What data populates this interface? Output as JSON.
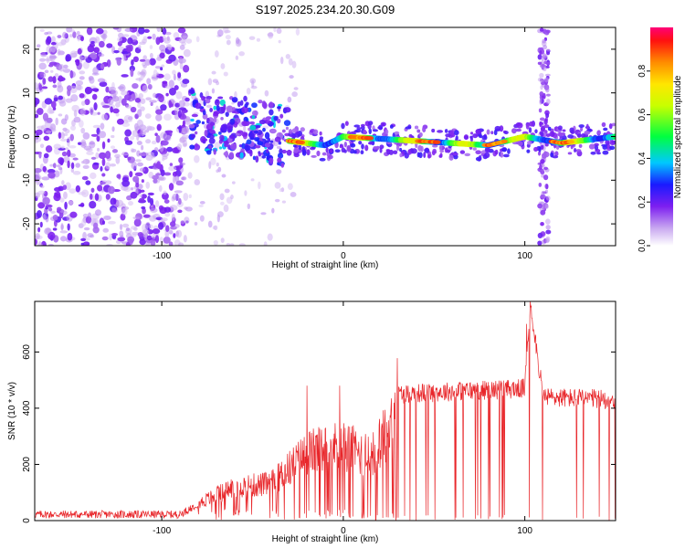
{
  "figure_title": "S197.2025.234.20.30.G09",
  "chart_data": [
    {
      "id": "spectrogram",
      "type": "heatmap",
      "title": "S197.2025.234.20.30.G09",
      "xlabel": "Height of straight line (km)",
      "ylabel": "Frequency (Hz)",
      "xlim": [
        -170,
        150
      ],
      "ylim": [
        -25,
        25
      ],
      "x_ticks": [
        -100,
        0,
        100
      ],
      "y_ticks": [
        -20,
        -10,
        0,
        10,
        20
      ],
      "colorbar": {
        "label": "Normalized spectral amplitude",
        "range": [
          0,
          1
        ],
        "ticks": [
          0.0,
          0.2,
          0.4,
          0.6,
          0.8
        ]
      },
      "features": [
        {
          "name": "broadband noise",
          "x_range": [
            -170,
            -85
          ],
          "freq_range": [
            -25,
            25
          ],
          "amplitude": "low"
        },
        {
          "name": "scattered signal",
          "x_range": [
            -85,
            -30
          ],
          "freq_range": [
            -8,
            12
          ],
          "amplitude": "medium"
        },
        {
          "name": "narrowband carrier",
          "x_range": [
            -30,
            150
          ],
          "center_freq_hz": [
            {
              "x": -30,
              "f": -1
            },
            {
              "x": -10,
              "f": -2
            },
            {
              "x": 0,
              "f": 0
            },
            {
              "x": 20,
              "f": -0.5
            },
            {
              "x": 40,
              "f": -1
            },
            {
              "x": 60,
              "f": -1.5
            },
            {
              "x": 80,
              "f": -2
            },
            {
              "x": 100,
              "f": 0
            },
            {
              "x": 120,
              "f": -1.5
            },
            {
              "x": 140,
              "f": -0.5
            },
            {
              "x": 150,
              "f": 0
            }
          ],
          "amplitude": "high"
        },
        {
          "name": "vertical stripe",
          "x_range": [
            108,
            113
          ],
          "freq_range": [
            -25,
            25
          ],
          "amplitude": "low"
        }
      ]
    },
    {
      "id": "snr",
      "type": "line",
      "xlabel": "Height of straight line (km)",
      "ylabel": "SNR (10 * v/v)",
      "xlim": [
        -170,
        150
      ],
      "ylim": [
        0,
        780
      ],
      "x_ticks": [
        -100,
        0,
        100
      ],
      "y_ticks": [
        0,
        200,
        400,
        600
      ],
      "series": [
        {
          "name": "SNR",
          "color": "#e8262a",
          "trend": [
            {
              "x": -170,
              "y": 22
            },
            {
              "x": -90,
              "y": 22
            },
            {
              "x": -80,
              "y": 60
            },
            {
              "x": -60,
              "y": 120
            },
            {
              "x": -40,
              "y": 130
            },
            {
              "x": -20,
              "y": 240
            },
            {
              "x": 0,
              "y": 270
            },
            {
              "x": 15,
              "y": 220
            },
            {
              "x": 25,
              "y": 330
            },
            {
              "x": 30,
              "y": 450
            },
            {
              "x": 60,
              "y": 460
            },
            {
              "x": 100,
              "y": 470
            },
            {
              "x": 103,
              "y": 780
            },
            {
              "x": 110,
              "y": 440
            },
            {
              "x": 150,
              "y": 430
            }
          ],
          "spikes": [
            {
              "x": -20,
              "y": 480
            },
            {
              "x": -2,
              "y": 480
            },
            {
              "x": 103,
              "y": 780
            },
            {
              "x": 101,
              "y": 700
            }
          ],
          "dropouts_to_zero_from_x": 10
        }
      ]
    }
  ]
}
